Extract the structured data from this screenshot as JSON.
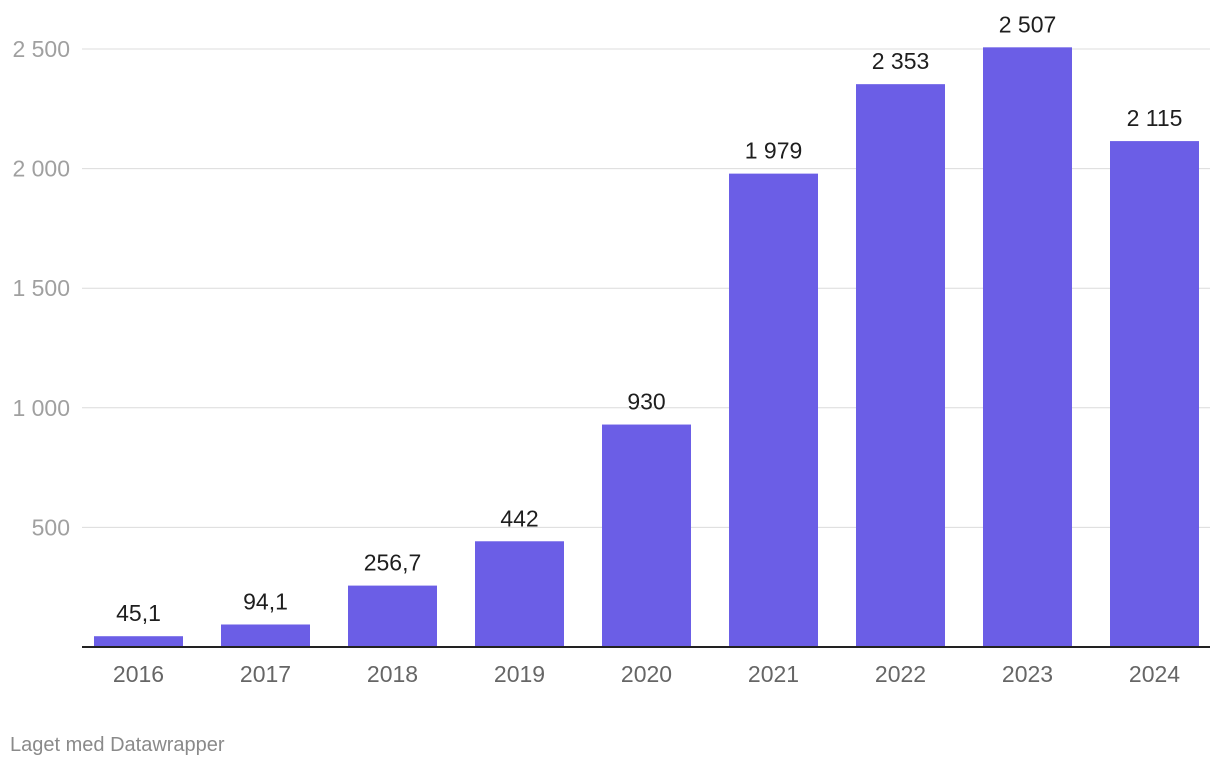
{
  "chart_data": {
    "type": "bar",
    "categories": [
      "2016",
      "2017",
      "2018",
      "2019",
      "2020",
      "2021",
      "2022",
      "2023",
      "2024"
    ],
    "values": [
      45.1,
      94.1,
      256.7,
      442,
      930,
      1979,
      2353,
      2507,
      2115
    ],
    "value_labels": [
      "45,1",
      "94,1",
      "256,7",
      "442",
      "930",
      "1 979",
      "2 353",
      "2 507",
      "2 115"
    ],
    "ylim": [
      0,
      2500
    ],
    "yticks": [
      500,
      1000,
      1500,
      2000,
      2500
    ],
    "ytick_labels": [
      "500",
      "1 000",
      "1 500",
      "2 000",
      "2 500"
    ],
    "title": "",
    "xlabel": "",
    "ylabel": "",
    "grid": true,
    "bar_color": "#6b5ee6"
  },
  "footer": {
    "credit": "Laget med Datawrapper"
  }
}
